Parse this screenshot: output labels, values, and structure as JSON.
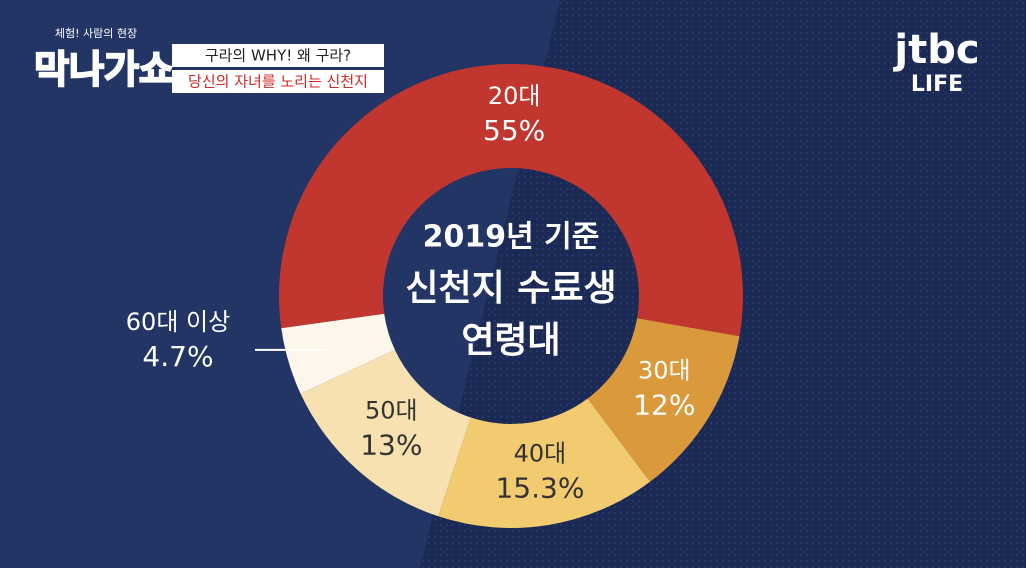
{
  "chart_data": {
    "type": "pie",
    "title": [
      "2019년 기준",
      "신천지 수료생",
      "연령대"
    ],
    "categories": [
      "20대",
      "30대",
      "40대",
      "50대",
      "60대 이상"
    ],
    "values": [
      55,
      12,
      15.3,
      13,
      4.7
    ],
    "value_labels": [
      "55%",
      "12%",
      "15.3%",
      "13%",
      "4.7%"
    ],
    "colors": [
      "#c1362f",
      "#da9a3b",
      "#f2ca70",
      "#f8e1b0",
      "#fdf6ea"
    ]
  },
  "program": {
    "tagline": "체험! 사람의 현장",
    "name": "막나가쇼",
    "caption": [
      "구라의 WHY! 왜 구라?",
      "당신의 자녀를 노리는 신천지"
    ]
  },
  "logo": {
    "brand": "jtbc",
    "channel": "LIFE"
  }
}
